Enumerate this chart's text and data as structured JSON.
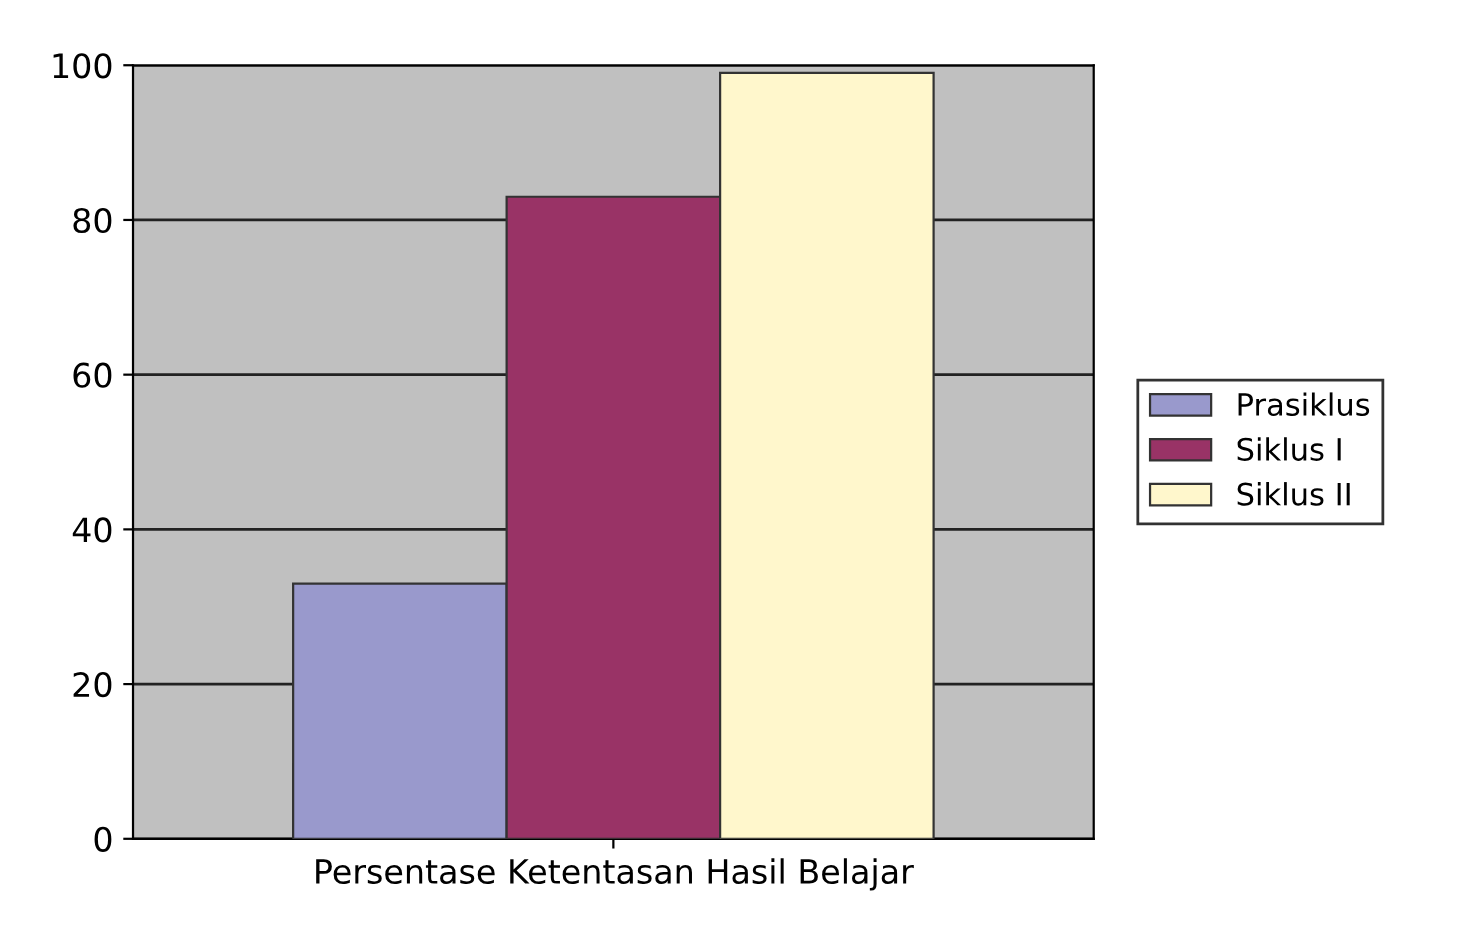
{
  "chart_data": {
    "type": "bar",
    "categories": [
      "Persentase Ketentasan Hasil Belajar"
    ],
    "series": [
      {
        "name": "Prasiklus",
        "color": "#9999cc",
        "values": [
          33
        ]
      },
      {
        "name": "Siklus I",
        "color": "#993366",
        "values": [
          83
        ]
      },
      {
        "name": "Siklus II",
        "color": "#fff7cc",
        "values": [
          99
        ]
      }
    ],
    "ylim": [
      0,
      100
    ],
    "yticks": [
      0,
      20,
      40,
      60,
      80,
      100
    ],
    "grid": "y",
    "legend": "right"
  }
}
